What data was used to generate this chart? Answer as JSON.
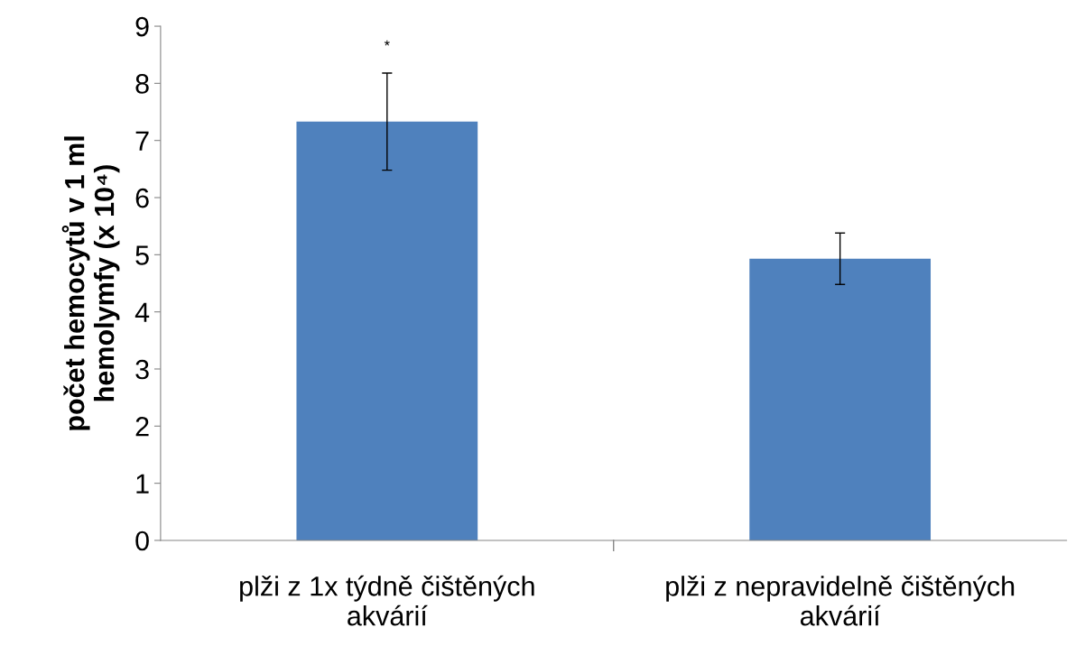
{
  "chart_data": {
    "type": "bar",
    "ylabel": "počet hemocytů v 1 ml\nhemolymfy (x 10⁴)",
    "categories": [
      "plži z 1x týdně čištěných\nakvárií",
      "plži z nepravidelně čištěných\nakvárií"
    ],
    "values": [
      7.33,
      4.93
    ],
    "errors": [
      0.85,
      0.45
    ],
    "color": "#4f81bd",
    "ylim": [
      0,
      9
    ],
    "yticks": [
      0,
      1,
      2,
      3,
      4,
      5,
      6,
      7,
      8,
      9
    ],
    "annotations": [
      "*"
    ],
    "grid": false,
    "legend": false
  }
}
